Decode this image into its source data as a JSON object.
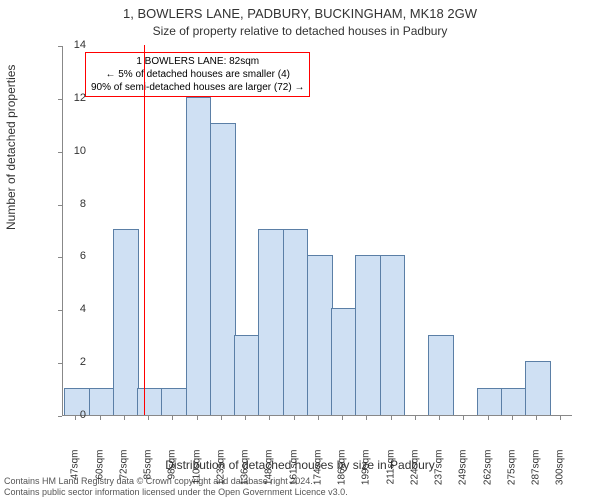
{
  "titles": {
    "main": "1, BOWLERS LANE, PADBURY, BUCKINGHAM, MK18 2GW",
    "sub": "Size of property relative to detached houses in Padbury"
  },
  "axes": {
    "ylabel": "Number of detached properties",
    "xlabel": "Distribution of detached houses by size in Padbury",
    "ylim": [
      0,
      14
    ],
    "ytick_step": 2,
    "xlim_sqm": [
      40,
      306
    ],
    "xtick_start": 47,
    "xtick_step": 12.65,
    "xtick_count": 21,
    "xtick_unit": "sqm"
  },
  "chart": {
    "type": "histogram",
    "bar_fill": "#cfe0f3",
    "bar_stroke": "#5b7fa6",
    "bin_width_sqm": 12.65,
    "values": [
      1,
      1,
      7,
      1,
      1,
      12,
      11,
      3,
      7,
      7,
      6,
      4,
      6,
      6,
      0,
      3,
      0,
      1,
      1,
      2,
      0
    ],
    "marker_line": {
      "x_sqm": 82,
      "color": "#ff0000"
    }
  },
  "info_box": {
    "border_color": "#ff0000",
    "line1": "1 BOWLERS LANE: 82sqm",
    "line2": "← 5% of detached houses are smaller (4)",
    "line3": "90% of semi-detached houses are larger (72) →"
  },
  "footer": {
    "line1": "Contains HM Land Registry data © Crown copyright and database right 2024.",
    "line2": "Contains public sector information licensed under the Open Government Licence v3.0."
  }
}
